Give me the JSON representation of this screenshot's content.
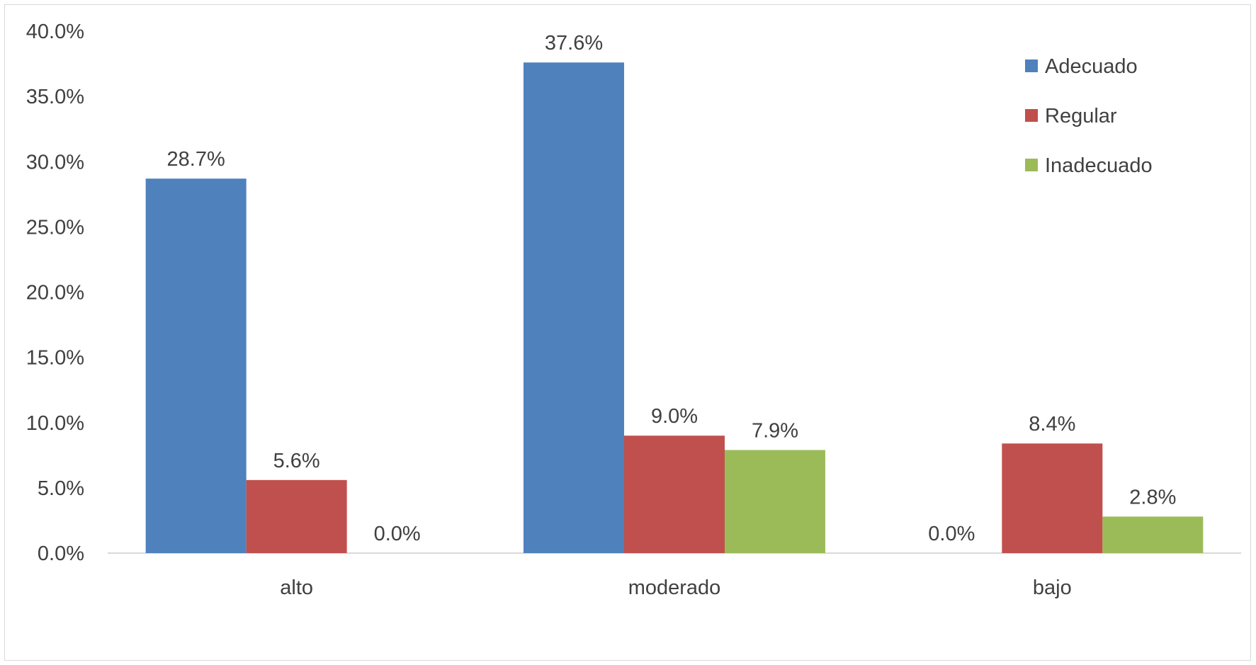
{
  "chart_data": {
    "type": "bar",
    "categories": [
      "alto",
      "moderado",
      "bajo"
    ],
    "series": [
      {
        "name": "Adecuado",
        "values": [
          28.7,
          37.6,
          0.0
        ],
        "color": "#4f81bd"
      },
      {
        "name": "Regular",
        "values": [
          5.6,
          9.0,
          8.4
        ],
        "color": "#c0504d"
      },
      {
        "name": "Inadecuado",
        "values": [
          0.0,
          7.9,
          2.8
        ],
        "color": "#9bbb59"
      }
    ],
    "data_labels": [
      [
        "28.7%",
        "37.6%",
        "0.0%"
      ],
      [
        "5.6%",
        "9.0%",
        "8.4%"
      ],
      [
        "0.0%",
        "7.9%",
        "2.8%"
      ]
    ],
    "y_ticks": [
      "0.0%",
      "5.0%",
      "10.0%",
      "15.0%",
      "20.0%",
      "25.0%",
      "30.0%",
      "35.0%",
      "40.0%"
    ],
    "ylim": [
      0,
      40
    ],
    "grid": false,
    "legend_position": "top-right",
    "title": "",
    "xlabel": "",
    "ylabel": ""
  }
}
